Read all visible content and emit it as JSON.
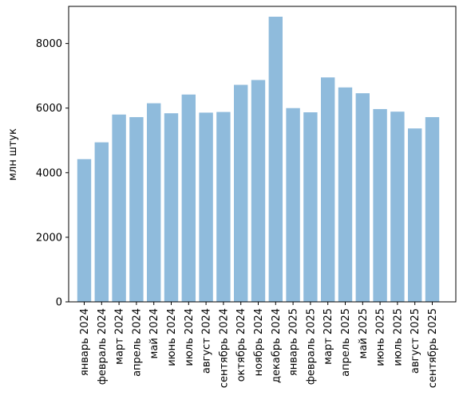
{
  "chart_data": {
    "type": "bar",
    "title": "",
    "xlabel": "",
    "ylabel": "млн штук",
    "categories": [
      "январь 2024",
      "февраль 2024",
      "март 2024",
      "апрель 2024",
      "май 2024",
      "июнь 2024",
      "июль 2024",
      "август 2024",
      "сентябрь 2024",
      "октябрь 2024",
      "ноябрь 2024",
      "декабрь 2024",
      "январь 2025",
      "февраль 2025",
      "март 2025",
      "апрель 2025",
      "май 2025",
      "июнь 2025",
      "июль 2025",
      "август 2025",
      "сентябрь 2025"
    ],
    "values": [
      4420,
      4940,
      5800,
      5720,
      6150,
      5840,
      6420,
      5860,
      5880,
      6720,
      6870,
      8830,
      6000,
      5870,
      6950,
      6640,
      6460,
      5970,
      5890,
      5370,
      5720
    ],
    "ylim": [
      0,
      9150
    ],
    "yticks": [
      0,
      2000,
      4000,
      6000,
      8000
    ],
    "ytick_labels": [
      "0",
      "2000",
      "4000",
      "6000",
      "8000"
    ],
    "bar_color": "#8fbbdc",
    "grid": false,
    "legend": "none"
  }
}
